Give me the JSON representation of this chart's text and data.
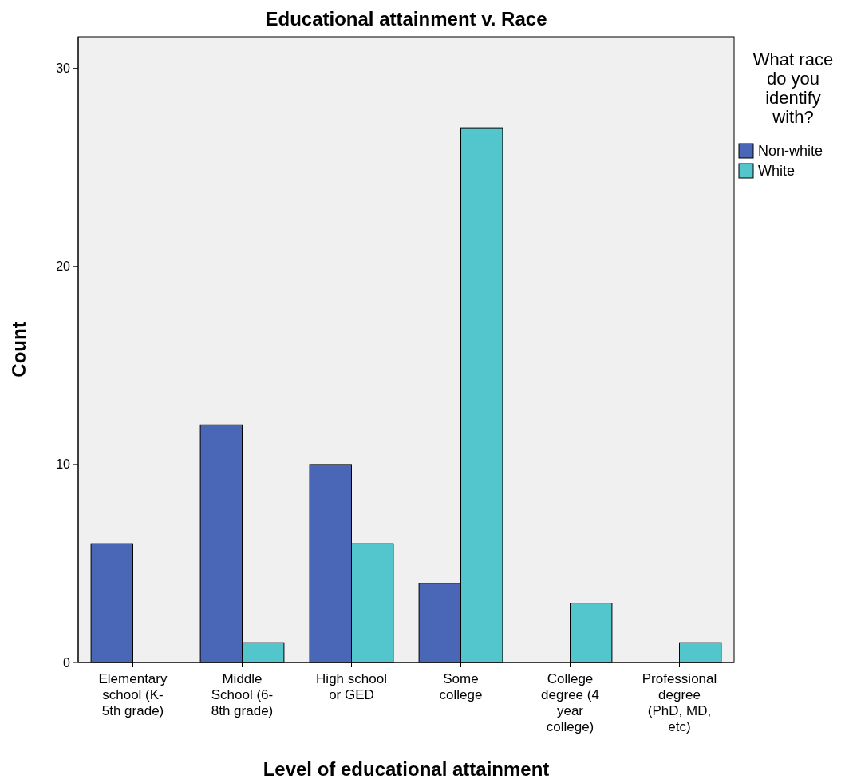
{
  "chart_data": {
    "type": "bar",
    "title": "Educational attainment v. Race",
    "xlabel": "Level of educational attainment",
    "ylabel": "Count",
    "legend_title": "What race do you identify with?",
    "categories": [
      "Elementary school (K-5th grade)",
      "Middle School (6-8th grade)",
      "High school or GED",
      "Some college",
      "College degree (4 year college)",
      "Professional degree (PhD, MD, etc)"
    ],
    "series": [
      {
        "name": "Non-white",
        "color": "#4a66b6",
        "values": [
          6,
          12,
          10,
          4,
          null,
          null
        ]
      },
      {
        "name": "White",
        "color": "#52c6cc",
        "values": [
          null,
          1,
          6,
          27,
          3,
          1
        ]
      }
    ],
    "ylim": [
      0,
      31.6
    ],
    "yticks": [
      0,
      10,
      20,
      30
    ],
    "grid": false,
    "legend": "right"
  }
}
